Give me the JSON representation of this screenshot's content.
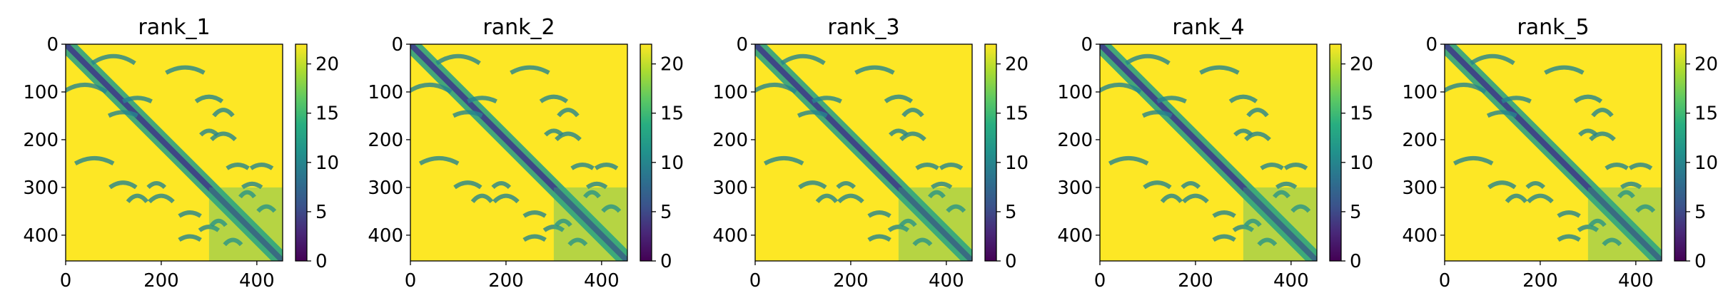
{
  "chart_data": [
    {
      "type": "heatmap",
      "title": "rank_1",
      "xlim": [
        0,
        454
      ],
      "ylim": [
        454,
        0
      ],
      "x_ticks": [
        0,
        200,
        400
      ],
      "y_ticks": [
        0,
        100,
        200,
        300,
        400
      ],
      "colorbar": {
        "range": [
          0,
          22
        ],
        "ticks": [
          0,
          5,
          10,
          15,
          20
        ],
        "colormap": "viridis"
      },
      "grid": false
    },
    {
      "type": "heatmap",
      "title": "rank_2",
      "xlim": [
        0,
        454
      ],
      "ylim": [
        454,
        0
      ],
      "x_ticks": [
        0,
        200,
        400
      ],
      "y_ticks": [
        0,
        100,
        200,
        300,
        400
      ],
      "colorbar": {
        "range": [
          0,
          22
        ],
        "ticks": [
          0,
          5,
          10,
          15,
          20
        ],
        "colormap": "viridis"
      },
      "grid": false
    },
    {
      "type": "heatmap",
      "title": "rank_3",
      "xlim": [
        0,
        454
      ],
      "ylim": [
        454,
        0
      ],
      "x_ticks": [
        0,
        200,
        400
      ],
      "y_ticks": [
        0,
        100,
        200,
        300,
        400
      ],
      "colorbar": {
        "range": [
          0,
          22
        ],
        "ticks": [
          0,
          5,
          10,
          15,
          20
        ],
        "colormap": "viridis"
      },
      "grid": false
    },
    {
      "type": "heatmap",
      "title": "rank_4",
      "xlim": [
        0,
        454
      ],
      "ylim": [
        454,
        0
      ],
      "x_ticks": [
        0,
        200,
        400
      ],
      "y_ticks": [
        0,
        100,
        200,
        300,
        400
      ],
      "colorbar": {
        "range": [
          0,
          22
        ],
        "ticks": [
          0,
          5,
          10,
          15,
          20
        ],
        "colormap": "viridis"
      },
      "grid": false
    },
    {
      "type": "heatmap",
      "title": "rank_5",
      "xlim": [
        0,
        454
      ],
      "ylim": [
        454,
        0
      ],
      "x_ticks": [
        0,
        200,
        400
      ],
      "y_ticks": [
        0,
        100,
        200,
        300,
        400
      ],
      "colorbar": {
        "range": [
          0,
          22
        ],
        "ticks": [
          0,
          5,
          10,
          15,
          20
        ],
        "colormap": "viridis"
      },
      "grid": false
    }
  ],
  "colors": {
    "viridis_low": "#440154",
    "viridis_mid_low": "#3b528b",
    "viridis_mid": "#21918c",
    "viridis_mid_high": "#5ec962",
    "viridis_high": "#fde725"
  }
}
